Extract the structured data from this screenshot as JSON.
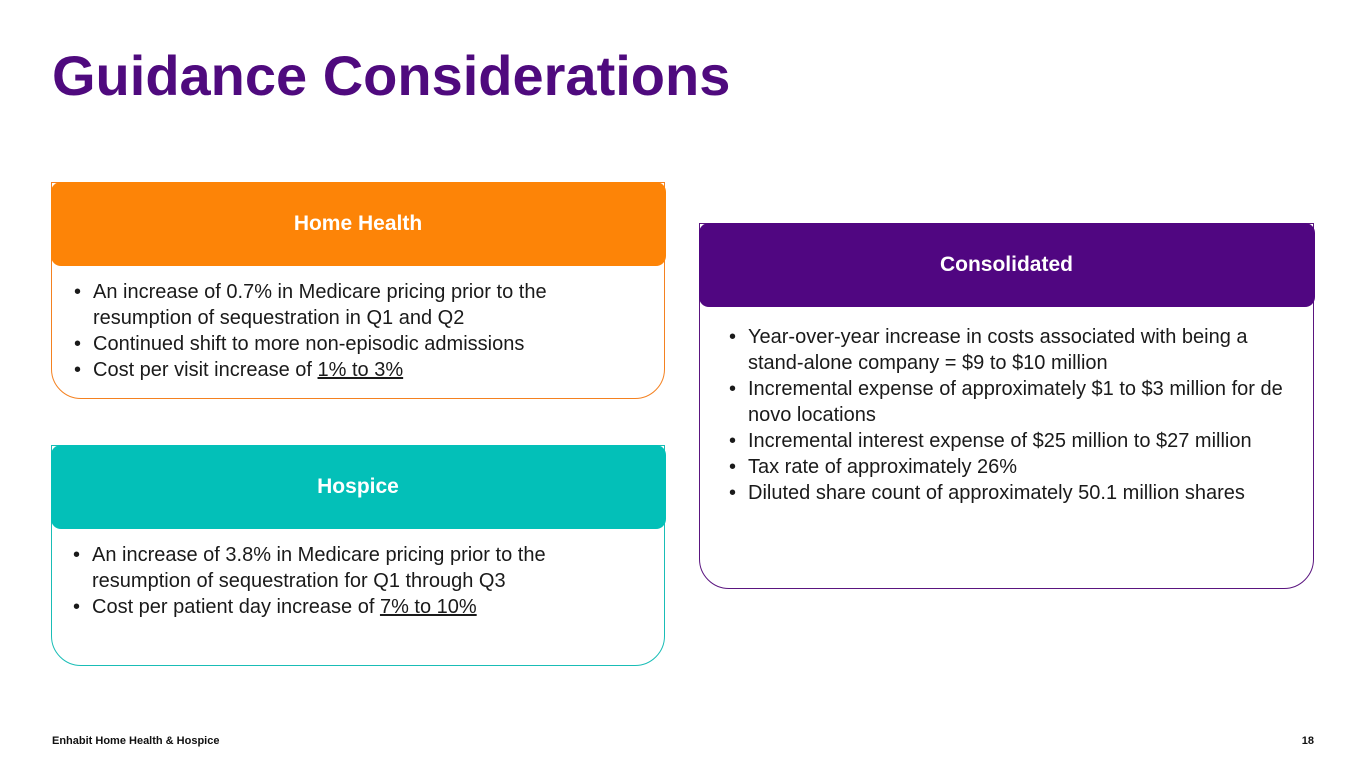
{
  "title": "Guidance Considerations",
  "home_health": {
    "heading": "Home Health",
    "color": "#fd8407",
    "bullets": [
      {
        "text": "An increase of 0.7% in Medicare pricing prior to the resumption of sequestration in Q1 and Q2",
        "underlined": ""
      },
      {
        "text": "Continued shift to more non-episodic admissions",
        "underlined": ""
      },
      {
        "text": "Cost per visit increase of ",
        "underlined": "1% to 3%"
      }
    ]
  },
  "hospice": {
    "heading": "Hospice",
    "color": "#03c0b8",
    "bullets": [
      {
        "text": "An increase of 3.8% in Medicare pricing prior to the resumption of sequestration for Q1 through Q3",
        "underlined": ""
      },
      {
        "text": "Cost per patient day increase of ",
        "underlined": "7% to 10%"
      }
    ]
  },
  "consolidated": {
    "heading": "Consolidated",
    "color": "#500681",
    "bullets": [
      {
        "text": "Year-over-year increase in costs associated with being a stand-alone company = $9 to $10 million",
        "underlined": ""
      },
      {
        "text": "Incremental expense of approximately $1 to $3 million for de novo locations",
        "underlined": ""
      },
      {
        "text": "Incremental interest expense of $25 million to $27 million",
        "underlined": ""
      },
      {
        "text": "Tax rate of approximately 26%",
        "underlined": ""
      },
      {
        "text": "Diluted share count of approximately 50.1 million shares",
        "underlined": ""
      }
    ]
  },
  "footer": {
    "company": "Enhabit Home Health & Hospice",
    "page_number": "18"
  },
  "bullet_char": "•"
}
